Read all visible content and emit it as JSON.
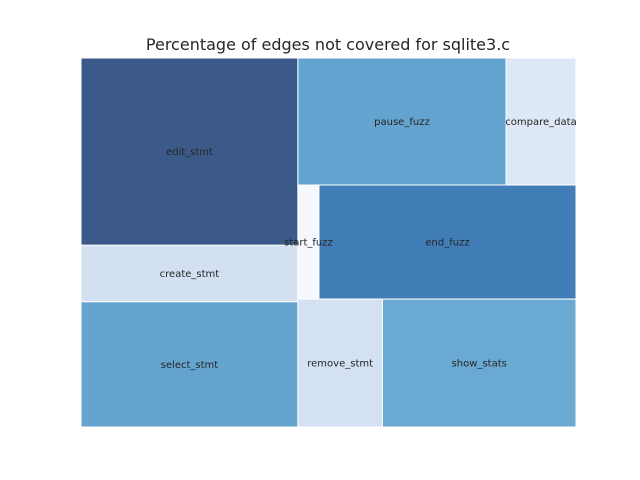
{
  "chart_data": {
    "type": "treemap",
    "title": "Percentage of edges not covered for sqlite3.c",
    "items": [
      {
        "label": "edit_stmt",
        "value": 16.9,
        "color": "#3b5a8a"
      },
      {
        "label": "create_stmt",
        "value": 5.1,
        "color": "#d2e0f1"
      },
      {
        "label": "select_stmt",
        "value": 11.3,
        "color": "#64a4cf"
      },
      {
        "label": "pause_fuzz",
        "value": 11.0,
        "color": "#62a3cf"
      },
      {
        "label": "compare_data",
        "value": 3.7,
        "color": "#dce8f5"
      },
      {
        "label": "start_fuzz",
        "value": 1.0,
        "color": "#f5f9fe"
      },
      {
        "label": "end_fuzz",
        "value": 12.2,
        "color": "#417db6"
      },
      {
        "label": "remove_stmt",
        "value": 4.5,
        "color": "#d3e1f2"
      },
      {
        "label": "show_stats",
        "value": 10.3,
        "color": "#6aaad2"
      }
    ]
  }
}
